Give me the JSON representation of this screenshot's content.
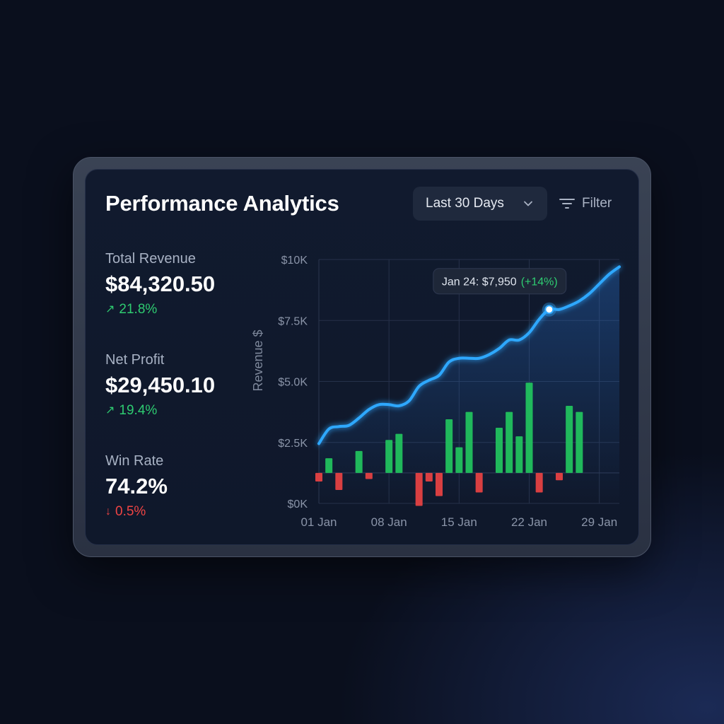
{
  "header": {
    "title": "Performance Analytics",
    "period_label": "Last 30 Days",
    "filter_label": "Filter"
  },
  "kpis": [
    {
      "label": "Total Revenue",
      "value": "$84,320.50",
      "change": "21.8%",
      "direction": "up"
    },
    {
      "label": "Net Profit",
      "value": "$29,450.10",
      "change": "19.4%",
      "direction": "up"
    },
    {
      "label": "Win Rate",
      "value": "74.2%",
      "change": "0.5%",
      "direction": "down"
    }
  ],
  "icons": {
    "up": "arrow-up-right-icon",
    "down": "arrow-down-icon",
    "filter": "filter-icon",
    "dropdown": "chevron-down-icon"
  },
  "colors": {
    "line": "#2fa8ff",
    "positive": "#22c55e",
    "negative": "#ef4444"
  },
  "chart_data": {
    "type": "line",
    "ylabel": "Revenue $",
    "y_ticks": [
      "$0K",
      "$2.5K",
      "$5.0K",
      "$7.5K",
      "$10K"
    ],
    "x_ticks": [
      "01 Jan",
      "08 Jan",
      "15 Jan",
      "22 Jan",
      "29 Jan"
    ],
    "x_tick_days": [
      1,
      8,
      15,
      22,
      29
    ],
    "ylim": [
      0,
      10000
    ],
    "grid": true,
    "line_series": {
      "name": "",
      "x": [
        1,
        2,
        3,
        4,
        5,
        6,
        7,
        8,
        9,
        10,
        11,
        12,
        13,
        14,
        15,
        16,
        17,
        18,
        19,
        20,
        21,
        22,
        23,
        24,
        25,
        26,
        27,
        28,
        29,
        30,
        31
      ],
      "values": [
        2450,
        3050,
        3150,
        3200,
        3500,
        3850,
        4050,
        4050,
        4000,
        4200,
        4800,
        5050,
        5250,
        5800,
        5950,
        5950,
        5950,
        6100,
        6350,
        6700,
        6700,
        7000,
        7550,
        7950,
        7950,
        8100,
        8300,
        8600,
        9000,
        9400,
        9700
      ]
    },
    "bar_series": {
      "name": "",
      "baseline": 1250,
      "x": [
        1,
        2,
        3,
        5,
        6,
        8,
        9,
        11,
        12,
        13,
        14,
        15,
        16,
        17,
        19,
        20,
        21,
        22,
        23,
        25,
        26,
        27,
        29,
        30
      ],
      "values": [
        -350,
        600,
        -700,
        900,
        -250,
        1350,
        1600,
        -1350,
        -350,
        -950,
        2200,
        1050,
        2500,
        -800,
        1850,
        2500,
        1500,
        3700,
        -800,
        -300,
        2750,
        2500,
        0,
        0
      ]
    },
    "tooltip": {
      "x": 24,
      "text": "Jan 24: $7,950",
      "change": "(+14%)"
    }
  }
}
